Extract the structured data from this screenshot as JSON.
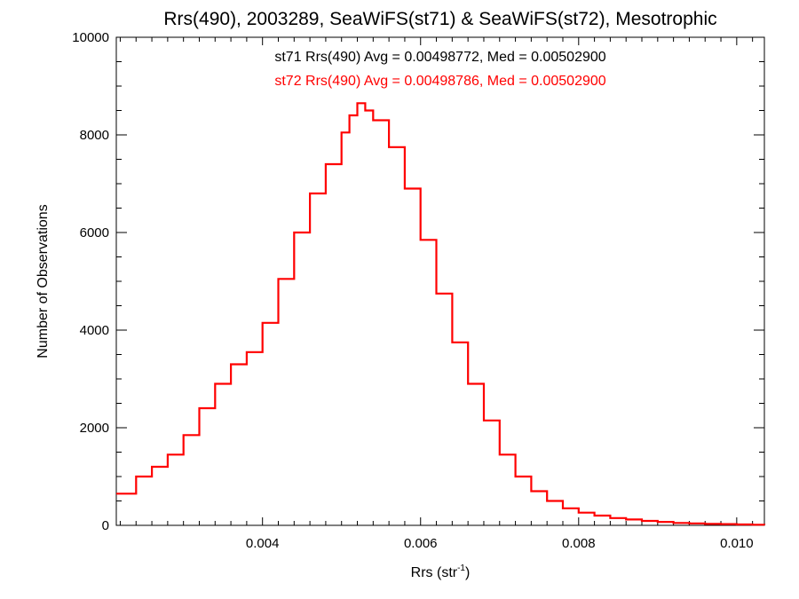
{
  "chart_data": {
    "type": "line",
    "step": true,
    "title": "Rrs(490), 2003289, SeaWiFS(st71) & SeaWiFS(st72), Mesotrophic",
    "xlabel": "Rrs (str",
    "xlabel_sup": "-1",
    "xlabel_close": ")",
    "ylabel": "Number of Observations",
    "xlim": [
      0.00215,
      0.01035
    ],
    "ylim": [
      0,
      10000
    ],
    "x_ticks": [
      0.004,
      0.006,
      0.008,
      0.01
    ],
    "x_tick_labels": [
      "0.004",
      "0.006",
      "0.008",
      "0.010"
    ],
    "y_ticks": [
      0,
      2000,
      4000,
      6000,
      8000,
      10000
    ],
    "y_tick_labels": [
      "0",
      "2000",
      "4000",
      "6000",
      "8000",
      "10000"
    ],
    "annotations": [
      {
        "text": "st71 Rrs(490) Avg = 0.00498772, Med = 0.00502900",
        "color": "#000000"
      },
      {
        "text": "st72 Rrs(490) Avg = 0.00498786, Med = 0.00502900",
        "color": "#ff0000"
      }
    ],
    "x": [
      0.00215,
      0.0024,
      0.0026,
      0.0028,
      0.003,
      0.0032,
      0.0034,
      0.0036,
      0.0038,
      0.004,
      0.0042,
      0.0044,
      0.0046,
      0.0048,
      0.005,
      0.0051,
      0.0052,
      0.0053,
      0.0054,
      0.0056,
      0.0058,
      0.006,
      0.0062,
      0.0064,
      0.0066,
      0.0068,
      0.007,
      0.0072,
      0.0074,
      0.0076,
      0.0078,
      0.008,
      0.0082,
      0.0084,
      0.0086,
      0.0088,
      0.009,
      0.0092,
      0.0094,
      0.0096,
      0.0098,
      0.01,
      0.0102,
      0.01035
    ],
    "series": [
      {
        "name": "st71",
        "color": "#000000",
        "values": [
          650,
          1000,
          1200,
          1450,
          1850,
          2400,
          2900,
          3300,
          3550,
          4150,
          5050,
          6000,
          6800,
          7400,
          8050,
          8400,
          8650,
          8500,
          8300,
          7750,
          6900,
          5850,
          4750,
          3750,
          2900,
          2150,
          1450,
          1000,
          700,
          500,
          350,
          260,
          200,
          150,
          120,
          90,
          70,
          50,
          40,
          30,
          25,
          18,
          12,
          10
        ]
      },
      {
        "name": "st72",
        "color": "#ff0000",
        "values": [
          650,
          1000,
          1200,
          1450,
          1850,
          2400,
          2900,
          3300,
          3550,
          4150,
          5050,
          6000,
          6800,
          7400,
          8050,
          8400,
          8650,
          8500,
          8300,
          7750,
          6900,
          5850,
          4750,
          3750,
          2900,
          2150,
          1450,
          1000,
          700,
          500,
          350,
          260,
          200,
          150,
          120,
          90,
          70,
          50,
          40,
          30,
          25,
          18,
          12,
          10
        ]
      }
    ]
  }
}
